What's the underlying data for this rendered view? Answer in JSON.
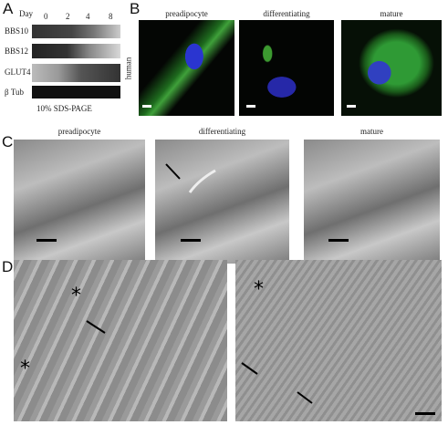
{
  "panel_a": {
    "label": "A",
    "day_label": "Day",
    "days": [
      "0",
      "2",
      "4",
      "8"
    ],
    "bands": [
      "BBS10",
      "BBS12",
      "GLUT4",
      "β Tub"
    ],
    "caption": "10% SDS-PAGE"
  },
  "panel_b": {
    "label": "B",
    "row_label": "human",
    "titles": [
      "preadipocyte",
      "differentiating",
      "mature"
    ]
  },
  "panel_c": {
    "label": "C",
    "titles": [
      "preadipocyte",
      "differentiating",
      "mature"
    ]
  },
  "panel_d": {
    "label": "D",
    "markers": [
      "*",
      "*",
      "*"
    ]
  }
}
